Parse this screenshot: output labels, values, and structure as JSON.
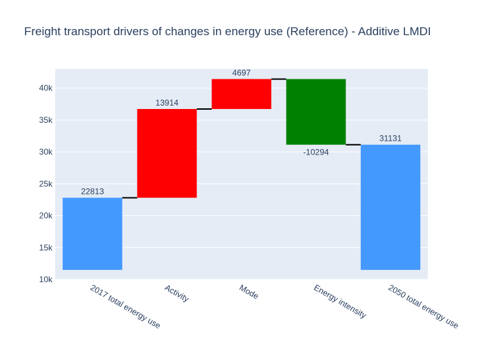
{
  "chart_data": {
    "type": "waterfall",
    "title": "Freight transport drivers of changes in energy use (Reference) - Additive LMDI",
    "xlabel": "",
    "ylabel": "",
    "categories": [
      "2017 total energy use",
      "Activity",
      "Mode",
      "Energy intensity",
      "2050 total energy use"
    ],
    "measures": [
      "absolute",
      "relative",
      "relative",
      "relative",
      "total"
    ],
    "values": [
      22813,
      13914,
      4697,
      -10294,
      31131
    ],
    "labels": [
      "22813",
      "13914",
      "4697",
      "-10294",
      "31131"
    ],
    "base": 11500,
    "ylim": [
      10000,
      43000
    ],
    "yticks": [
      10000,
      15000,
      20000,
      25000,
      30000,
      35000,
      40000
    ],
    "ytick_labels": [
      "10k",
      "15k",
      "20k",
      "25k",
      "30k",
      "35k",
      "40k"
    ],
    "grid": true,
    "colors": {
      "total": "#4499ff",
      "increase": "#ff0000",
      "decrease": "#008000",
      "plot_bg": "#e5ecf6",
      "grid": "#ffffff",
      "text": "#2a3f5f",
      "connector": "#000000"
    }
  }
}
